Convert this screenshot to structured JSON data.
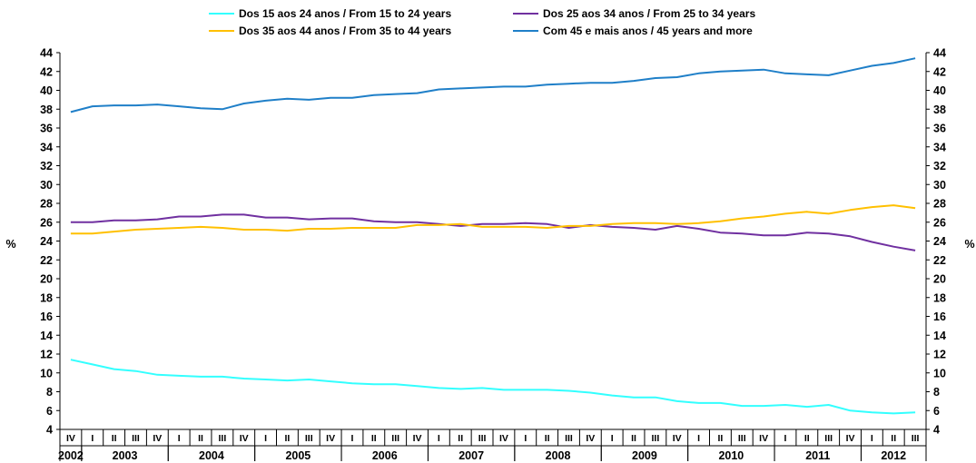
{
  "chart_data": {
    "type": "line",
    "ylabel_left": "%",
    "ylabel_right": "%",
    "ylim": [
      4,
      44
    ],
    "yticks": [
      4,
      6,
      8,
      10,
      12,
      14,
      16,
      18,
      20,
      22,
      24,
      26,
      28,
      30,
      32,
      34,
      36,
      38,
      40,
      42,
      44
    ],
    "legend_position": "top-center",
    "grid": false,
    "x_quarters": [
      "IV",
      "I",
      "II",
      "III",
      "IV",
      "I",
      "II",
      "III",
      "IV",
      "I",
      "II",
      "III",
      "IV",
      "I",
      "II",
      "III",
      "IV",
      "I",
      "II",
      "III",
      "IV",
      "I",
      "II",
      "III",
      "IV",
      "I",
      "II",
      "III",
      "IV",
      "I",
      "II",
      "III",
      "IV",
      "I",
      "II",
      "III",
      "IV",
      "I",
      "II",
      "III"
    ],
    "x_years": [
      {
        "label": "2002",
        "start": 0,
        "end": 0
      },
      {
        "label": "2003",
        "start": 1,
        "end": 4
      },
      {
        "label": "2004",
        "start": 5,
        "end": 8
      },
      {
        "label": "2005",
        "start": 9,
        "end": 12
      },
      {
        "label": "2006",
        "start": 13,
        "end": 16
      },
      {
        "label": "2007",
        "start": 17,
        "end": 20
      },
      {
        "label": "2008",
        "start": 21,
        "end": 24
      },
      {
        "label": "2009",
        "start": 25,
        "end": 28
      },
      {
        "label": "2010",
        "start": 29,
        "end": 32
      },
      {
        "label": "2011",
        "start": 33,
        "end": 36
      },
      {
        "label": "2012",
        "start": 37,
        "end": 39
      }
    ],
    "series": [
      {
        "name": "Dos 15 aos 24 anos / From 15 to 24 years",
        "color": "#33ffff",
        "values": [
          11.4,
          10.9,
          10.4,
          10.2,
          9.8,
          9.7,
          9.6,
          9.6,
          9.4,
          9.3,
          9.2,
          9.3,
          9.1,
          8.9,
          8.8,
          8.8,
          8.6,
          8.4,
          8.3,
          8.4,
          8.2,
          8.2,
          8.2,
          8.1,
          7.9,
          7.6,
          7.4,
          7.4,
          7.0,
          6.8,
          6.8,
          6.5,
          6.5,
          6.6,
          6.4,
          6.6,
          6.0,
          5.8,
          5.7,
          5.8
        ]
      },
      {
        "name": "Dos 25 aos 34 anos / From 25 to 34 years",
        "color": "#7030a0",
        "values": [
          26.0,
          26.0,
          26.2,
          26.2,
          26.3,
          26.6,
          26.6,
          26.8,
          26.8,
          26.5,
          26.5,
          26.3,
          26.4,
          26.4,
          26.1,
          26.0,
          26.0,
          25.8,
          25.6,
          25.8,
          25.8,
          25.9,
          25.8,
          25.4,
          25.7,
          25.5,
          25.4,
          25.2,
          25.6,
          25.3,
          24.9,
          24.8,
          24.6,
          24.6,
          24.9,
          24.8,
          24.5,
          23.9,
          23.4,
          23.0
        ]
      },
      {
        "name": "Dos 35 aos 44 anos / From 35 to 44 years",
        "color": "#ffc000",
        "values": [
          24.8,
          24.8,
          25.0,
          25.2,
          25.3,
          25.4,
          25.5,
          25.4,
          25.2,
          25.2,
          25.1,
          25.3,
          25.3,
          25.4,
          25.4,
          25.4,
          25.7,
          25.7,
          25.8,
          25.5,
          25.5,
          25.5,
          25.4,
          25.6,
          25.6,
          25.8,
          25.9,
          25.9,
          25.8,
          25.9,
          26.1,
          26.4,
          26.6,
          26.9,
          27.1,
          26.9,
          27.3,
          27.6,
          27.8,
          27.5
        ]
      },
      {
        "name": "Com 45 e mais anos / 45 years and more",
        "color": "#1f7fc8",
        "values": [
          37.7,
          38.3,
          38.4,
          38.4,
          38.5,
          38.3,
          38.1,
          38.0,
          38.6,
          38.9,
          39.1,
          39.0,
          39.2,
          39.2,
          39.5,
          39.6,
          39.7,
          40.1,
          40.2,
          40.3,
          40.4,
          40.4,
          40.6,
          40.7,
          40.8,
          40.8,
          41.0,
          41.3,
          41.4,
          41.8,
          42.0,
          42.1,
          42.2,
          41.8,
          41.7,
          41.6,
          42.1,
          42.6,
          42.9,
          43.4
        ]
      }
    ]
  }
}
